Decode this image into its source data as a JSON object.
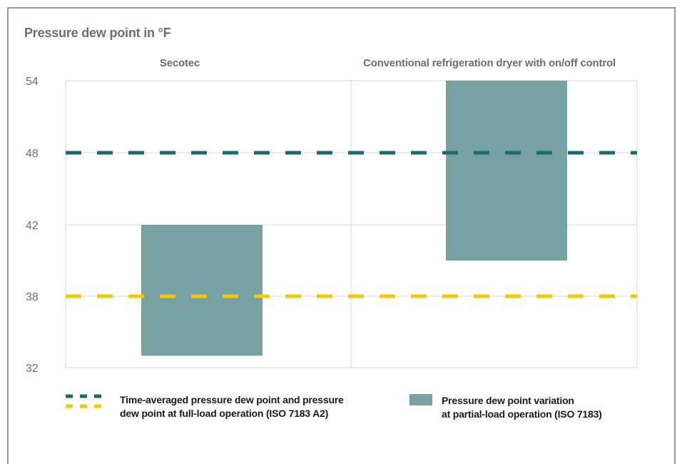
{
  "chart_data": {
    "type": "range-bar",
    "title": "Pressure dew point in °F",
    "categories": [
      "Secotec",
      "Conventional refrigeration dryer with on/off control"
    ],
    "y_ticks": [
      32,
      38,
      42,
      48,
      54
    ],
    "ylim": [
      32,
      54
    ],
    "ranges": [
      {
        "category": "Secotec",
        "low": 33,
        "high": 42
      },
      {
        "category": "Conventional refrigeration dryer with on/off control",
        "low": 40,
        "high": 54
      }
    ],
    "reference_lines": [
      {
        "value": 48,
        "color": "#1b6b6e"
      },
      {
        "value": 38,
        "color": "#f5c800"
      }
    ],
    "range_color": "#76a2a4",
    "grid": true,
    "legend": {
      "position": "bottom",
      "line_entry": [
        "Time-averaged pressure dew point and pressure",
        "dew point at full-load operation (ISO 7183 A2)"
      ],
      "box_entry": [
        "Pressure dew point variation",
        "at partial-load operation (ISO 7183)"
      ]
    }
  }
}
